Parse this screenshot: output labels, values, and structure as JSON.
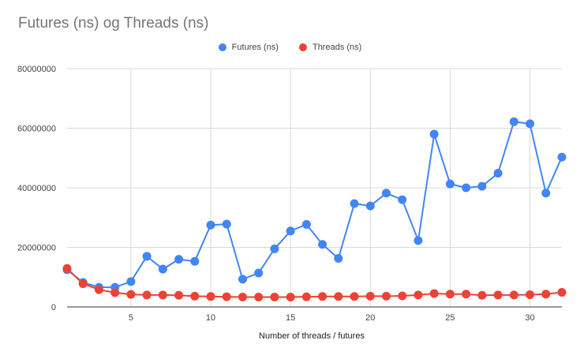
{
  "chart_data": {
    "type": "line",
    "title": "Futures (ns) og Threads (ns)",
    "xlabel": "Number of threads / futures",
    "ylabel": "",
    "xlim": [
      1,
      32
    ],
    "ylim": [
      0,
      80000000
    ],
    "xticks": [
      5,
      10,
      15,
      20,
      25,
      30
    ],
    "yticks": [
      0,
      20000000,
      40000000,
      60000000,
      80000000
    ],
    "ytick_labels": [
      "0",
      "20000000",
      "40000000",
      "60000000",
      "80000000"
    ],
    "grid": true,
    "legend_position": "top",
    "x": [
      1,
      2,
      3,
      4,
      5,
      6,
      7,
      8,
      9,
      10,
      11,
      12,
      13,
      14,
      15,
      16,
      17,
      18,
      19,
      20,
      21,
      22,
      23,
      24,
      25,
      26,
      27,
      28,
      29,
      30,
      31,
      32
    ],
    "series": [
      {
        "name": "Futures (ns)",
        "color": "#4285f4",
        "values": [
          12500000,
          8200000,
          6600000,
          6600000,
          8500000,
          17000000,
          12700000,
          16000000,
          15300000,
          27500000,
          27800000,
          9300000,
          11400000,
          19500000,
          25500000,
          27700000,
          21000000,
          16300000,
          34700000,
          33900000,
          38200000,
          36000000,
          22300000,
          58000000,
          41300000,
          40000000,
          40500000,
          44900000,
          62200000,
          61500000,
          38200000,
          50300000
        ]
      },
      {
        "name": "Threads (ns)",
        "color": "#ea4335",
        "values": [
          12900000,
          7800000,
          5800000,
          4800000,
          4200000,
          4000000,
          4000000,
          3900000,
          3600000,
          3500000,
          3400000,
          3300000,
          3300000,
          3300000,
          3300000,
          3400000,
          3500000,
          3500000,
          3500000,
          3600000,
          3600000,
          3700000,
          4000000,
          4500000,
          4300000,
          4300000,
          3900000,
          4000000,
          4000000,
          4100000,
          4300000,
          4900000
        ]
      }
    ]
  }
}
